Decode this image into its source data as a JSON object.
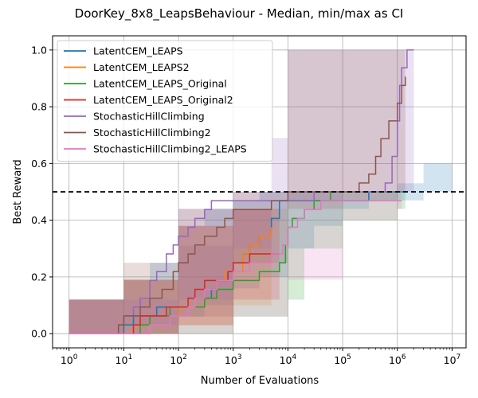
{
  "chart_data": {
    "type": "line",
    "title": "DoorKey_8x8_LeapsBehaviour - Median, min/max as CI",
    "xlabel": "Number of Evaluations",
    "ylabel": "Best Reward",
    "xscale": "log",
    "xlim": [
      0.5,
      18000000
    ],
    "ylim": [
      -0.05,
      1.05
    ],
    "x_ticks": [
      1,
      10,
      100,
      1000,
      10000,
      100000,
      1000000,
      10000000
    ],
    "x_tick_labels": [
      {
        "base": "10",
        "exp": "0"
      },
      {
        "base": "10",
        "exp": "1"
      },
      {
        "base": "10",
        "exp": "2"
      },
      {
        "base": "10",
        "exp": "3"
      },
      {
        "base": "10",
        "exp": "4"
      },
      {
        "base": "10",
        "exp": "5"
      },
      {
        "base": "10",
        "exp": "6"
      },
      {
        "base": "10",
        "exp": "7"
      }
    ],
    "y_ticks": [
      0.0,
      0.2,
      0.4,
      0.6,
      0.8,
      1.0
    ],
    "y_tick_labels": [
      "0.0",
      "0.2",
      "0.4",
      "0.6",
      "0.8",
      "1.0"
    ],
    "grid": true,
    "legend_position": "top-left",
    "threshold": {
      "y": 0.5,
      "style": "dashed",
      "color": "#000000"
    },
    "series": [
      {
        "name": "LatentCEM_LEAPS",
        "color": "#1f77b4",
        "x": [
          1,
          8,
          10,
          12,
          15,
          20,
          30,
          40,
          60,
          80,
          100,
          150,
          200,
          300,
          400,
          500,
          600,
          800,
          1000,
          1500,
          2000,
          3000,
          5000,
          7000,
          10000,
          20000,
          50000,
          100000,
          200000,
          300000,
          500000,
          1000000,
          1300000
        ],
        "y": [
          0.0,
          0.0,
          0.0312,
          0.0312,
          0.0625,
          0.0625,
          0.0625,
          0.0938,
          0.0938,
          0.0938,
          0.0938,
          0.0938,
          0.0938,
          0.125,
          0.1562,
          0.1875,
          0.1875,
          0.2188,
          0.25,
          0.2812,
          0.3125,
          0.3438,
          0.4062,
          0.4688,
          0.4688,
          0.4688,
          0.4688,
          0.4688,
          0.4688,
          0.5,
          0.5,
          0.5,
          0.5
        ],
        "band_x": [
          1,
          10,
          30,
          100,
          300,
          1000,
          3000,
          10000,
          30000,
          100000,
          300000,
          1000000,
          3000000,
          10000000
        ],
        "band_min": [
          0.0,
          0.0,
          0.0,
          0.06,
          0.1,
          0.16,
          0.2,
          0.3,
          0.38,
          0.44,
          0.47,
          0.47,
          0.5,
          0.5
        ],
        "band_max": [
          0.12,
          0.19,
          0.25,
          0.38,
          0.44,
          0.47,
          0.5,
          0.5,
          0.5,
          0.5,
          0.5,
          0.53,
          0.6,
          0.69
        ]
      },
      {
        "name": "LatentCEM_LEAPS2",
        "color": "#ff7f0e",
        "x": [
          1,
          10,
          15,
          20,
          30,
          40,
          60,
          100,
          150,
          200,
          300,
          500,
          700,
          1000,
          1500,
          2000,
          3000,
          4000,
          5000
        ],
        "y": [
          0.0,
          0.0,
          0.0312,
          0.0312,
          0.0625,
          0.0625,
          0.0625,
          0.0938,
          0.0938,
          0.0938,
          0.125,
          0.1875,
          0.2188,
          0.2188,
          0.2812,
          0.3125,
          0.3438,
          0.3438,
          0.375
        ],
        "band_x": [
          1,
          10,
          100,
          1000,
          5000
        ],
        "band_min": [
          0.0,
          0.0,
          0.03,
          0.1,
          0.2
        ],
        "band_max": [
          0.12,
          0.19,
          0.38,
          0.44,
          0.47
        ]
      },
      {
        "name": "LatentCEM_LEAPS_Original",
        "color": "#2ca02c",
        "x": [
          1,
          10,
          20,
          30,
          50,
          70,
          100,
          200,
          300,
          500,
          700,
          1000,
          2000,
          3000,
          5000,
          7000,
          9000,
          10000,
          12000,
          15000,
          20000,
          30000,
          40000,
          60000
        ],
        "y": [
          0.0,
          0.0,
          0.0312,
          0.0625,
          0.0625,
          0.0938,
          0.0938,
          0.0938,
          0.125,
          0.1562,
          0.1562,
          0.1875,
          0.1875,
          0.2188,
          0.2188,
          0.25,
          0.3125,
          0.375,
          0.4062,
          0.4062,
          0.4375,
          0.4688,
          0.4688,
          0.5
        ],
        "band_x": [
          1,
          10,
          100,
          1000,
          10000,
          20000,
          100000,
          1000000,
          1400000
        ],
        "band_min": [
          0.0,
          0.0,
          0.0,
          0.06,
          0.12,
          0.3,
          0.4,
          0.44,
          0.44
        ],
        "band_max": [
          0.12,
          0.19,
          0.31,
          0.44,
          0.5,
          0.5,
          0.5,
          0.5,
          0.5
        ]
      },
      {
        "name": "LatentCEM_LEAPS_Original2",
        "color": "#d62728",
        "x": [
          1,
          10,
          15,
          20,
          40,
          60,
          100,
          150,
          200,
          300,
          500,
          800,
          1000,
          1500,
          2000,
          3000,
          5000,
          7000
        ],
        "y": [
          0.0,
          0.0,
          0.0312,
          0.0625,
          0.0625,
          0.0938,
          0.0938,
          0.125,
          0.1562,
          0.1875,
          0.1875,
          0.2188,
          0.25,
          0.25,
          0.2812,
          0.2812,
          0.2812,
          0.2812
        ],
        "band_x": [
          1,
          10,
          100,
          1000,
          7000
        ],
        "band_min": [
          0.0,
          0.0,
          0.03,
          0.12,
          0.19
        ],
        "band_max": [
          0.12,
          0.19,
          0.38,
          0.44,
          0.5
        ]
      },
      {
        "name": "StochasticHillClimbing",
        "color": "#9467bd",
        "x": [
          1,
          6,
          8,
          10,
          15,
          20,
          30,
          40,
          60,
          80,
          100,
          150,
          200,
          300,
          400,
          500,
          700,
          1000,
          2000,
          3000,
          5000,
          10000,
          30000,
          100000,
          300000,
          600000,
          800000,
          1000000,
          1100000,
          1200000,
          1500000,
          2000000
        ],
        "y": [
          0.0,
          0.0,
          0.0312,
          0.0625,
          0.0938,
          0.125,
          0.1875,
          0.2188,
          0.2812,
          0.3125,
          0.3438,
          0.375,
          0.4062,
          0.4375,
          0.4688,
          0.4688,
          0.4688,
          0.4688,
          0.4688,
          0.4688,
          0.4688,
          0.4688,
          0.5,
          0.5,
          0.5,
          0.5312,
          0.625,
          0.75,
          0.875,
          0.9375,
          1.0,
          1.0
        ],
        "band_x": [
          1,
          5,
          10,
          100,
          1000,
          5000,
          10000,
          100000,
          1000000,
          2000000
        ],
        "band_min": [
          0.0,
          0.0,
          0.03,
          0.12,
          0.3,
          0.44,
          0.47,
          0.5,
          0.5,
          0.5
        ],
        "band_max": [
          0.12,
          0.12,
          0.12,
          0.44,
          0.5,
          0.69,
          1.0,
          1.0,
          1.0,
          1.0
        ]
      },
      {
        "name": "StochasticHillClimbing2",
        "color": "#8c564b",
        "x": [
          1,
          5,
          8,
          10,
          15,
          20,
          30,
          50,
          80,
          100,
          150,
          200,
          300,
          500,
          700,
          1000,
          2000,
          5000,
          10000,
          30000,
          50000,
          100000,
          200000,
          300000,
          400000,
          500000,
          700000,
          1000000,
          1200000,
          1400000
        ],
        "y": [
          0.0,
          0.0,
          0.0312,
          0.0625,
          0.0625,
          0.0938,
          0.125,
          0.1562,
          0.2188,
          0.25,
          0.2812,
          0.3125,
          0.3438,
          0.375,
          0.4062,
          0.4375,
          0.4375,
          0.4688,
          0.5,
          0.5,
          0.5,
          0.5,
          0.5312,
          0.5625,
          0.625,
          0.6875,
          0.75,
          0.8125,
          0.875,
          0.9062
        ],
        "band_x": [
          1,
          10,
          100,
          1000,
          10000,
          100000,
          1000000,
          1400000
        ],
        "band_min": [
          0.0,
          0.0,
          0.06,
          0.25,
          0.44,
          0.47,
          0.5,
          0.5
        ],
        "band_max": [
          0.12,
          0.25,
          0.44,
          0.5,
          1.0,
          1.0,
          1.0,
          1.0
        ]
      },
      {
        "name": "StochasticHillClimbing2_LEAPS",
        "color": "#e377c2",
        "x": [
          1,
          10,
          20,
          30,
          50,
          70,
          100,
          150,
          200,
          300,
          500,
          1000,
          2000,
          3000,
          5000,
          8000,
          10000,
          15000,
          20000,
          40000,
          100000,
          300000,
          1000000,
          1200000
        ],
        "y": [
          0.0,
          0.0,
          0.0,
          0.0312,
          0.0312,
          0.0625,
          0.0625,
          0.0938,
          0.125,
          0.1562,
          0.1875,
          0.2188,
          0.25,
          0.25,
          0.2812,
          0.3125,
          0.375,
          0.4062,
          0.4375,
          0.4688,
          0.4688,
          0.4688,
          0.4688,
          0.4688
        ],
        "band_x": [
          1,
          10,
          100,
          1000,
          10000,
          100000,
          1000000,
          1200000
        ],
        "band_min": [
          0.0,
          0.0,
          0.0,
          0.06,
          0.19,
          0.4,
          0.44,
          0.44
        ],
        "band_max": [
          0.12,
          0.19,
          0.31,
          0.44,
          0.5,
          0.5,
          0.5,
          0.5
        ]
      }
    ]
  }
}
